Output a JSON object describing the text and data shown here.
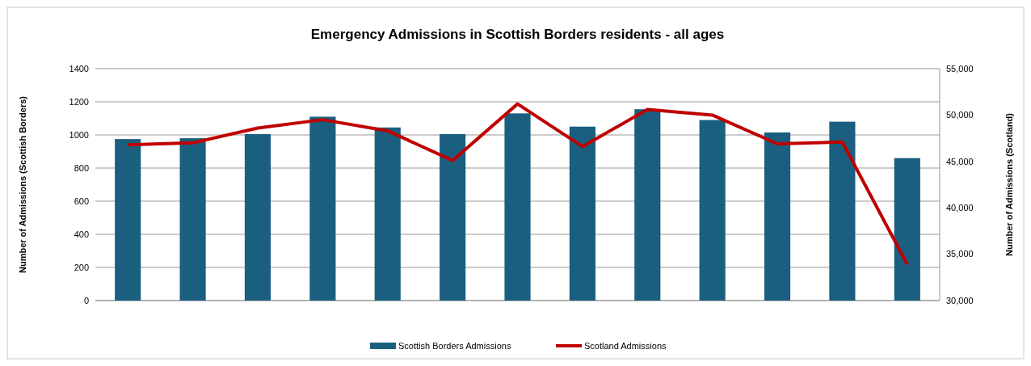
{
  "chart_data": {
    "type": "bar",
    "title": "Emergency Admissions in Scottish Borders residents - all ages",
    "ylabel": "Number of Admissions (Scottish Borders)",
    "y2label": "Number of Admissions (Scotland)",
    "categories": [
      null,
      null,
      null,
      null,
      null,
      null,
      null,
      null,
      null,
      null,
      null,
      null,
      null
    ],
    "series": [
      {
        "name": "Scottish Borders Admissions",
        "color": "#1a5f80",
        "values": [
          975,
          980,
          1005,
          1110,
          1045,
          1005,
          1130,
          1050,
          1155,
          1090,
          1015,
          1080,
          860
        ]
      },
      {
        "name": "Scotland Admissions",
        "type": "line",
        "axis": "y2",
        "color": "#c00000",
        "values": [
          46800,
          47000,
          48600,
          49500,
          48300,
          45100,
          51200,
          46600,
          50600,
          50000,
          46900,
          47100,
          33900
        ]
      }
    ],
    "ylim": [
      0,
      1400
    ],
    "yticks": [
      0,
      200,
      400,
      600,
      800,
      1000,
      1200,
      1400
    ],
    "y2lim": [
      30000,
      55000
    ],
    "y2ticks": [
      {
        "value": 30000,
        "label": "30,000"
      },
      {
        "value": 35000,
        "label": "35,000"
      },
      {
        "value": 40000,
        "label": "40,000"
      },
      {
        "value": 45000,
        "label": "45,000"
      },
      {
        "value": 50000,
        "label": "50,000"
      },
      {
        "value": 55000,
        "label": "55,000"
      }
    ],
    "grid": "y",
    "legend": "bottom",
    "marker": "none",
    "line_style": "solid"
  }
}
